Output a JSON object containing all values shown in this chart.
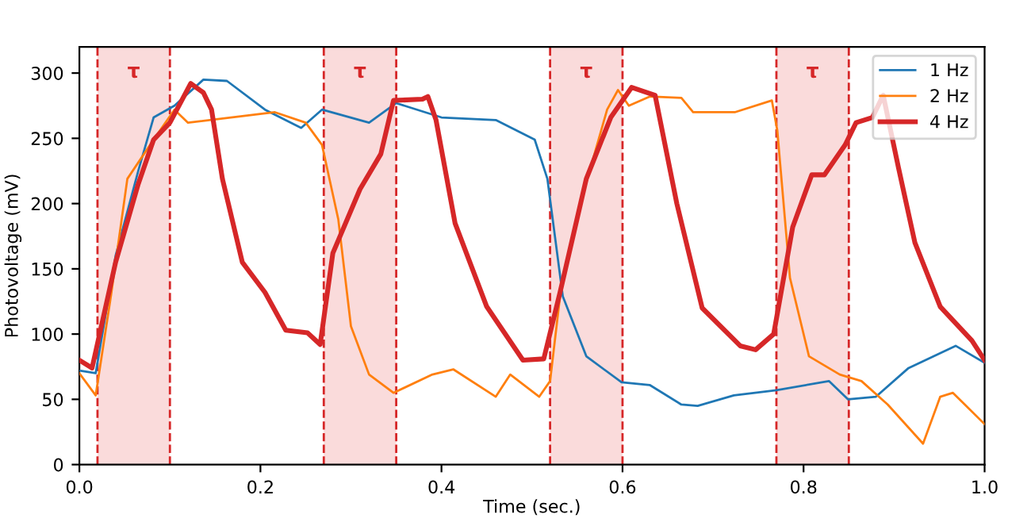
{
  "chart_data": {
    "type": "line",
    "xlabel": "Time (sec.)",
    "ylabel": "Photovoltage (mV)",
    "xlim": [
      0,
      1.0
    ],
    "ylim": [
      0,
      320
    ],
    "xticks": [
      {
        "value": 0,
        "label": "0.0"
      },
      0.2,
      0.4,
      0.6,
      0.8,
      {
        "value": 1.0,
        "label": "1.0"
      }
    ],
    "yticks": [
      0,
      50,
      100,
      150,
      200,
      250,
      300
    ],
    "grid": false,
    "legend": "top right",
    "marker": "none",
    "line_style": "solid",
    "series": [
      {
        "name": "1 Hz",
        "color": "#1f77b4",
        "x": [
          0,
          0.018,
          0.04,
          0.065,
          0.082,
          0.105,
          0.137,
          0.163,
          0.205,
          0.245,
          0.268,
          0.32,
          0.35,
          0.4,
          0.46,
          0.503,
          0.517,
          0.534,
          0.56,
          0.599,
          0.63,
          0.665,
          0.683,
          0.723,
          0.77,
          0.828,
          0.849,
          0.88,
          0.916,
          0.968,
          1.0
        ],
        "values": [
          72,
          70,
          160,
          225,
          266,
          275,
          295,
          294,
          272,
          258,
          272,
          262,
          277,
          266,
          264,
          249,
          219,
          129,
          83,
          63,
          61,
          46,
          45,
          53,
          57,
          64,
          50,
          52,
          74,
          91,
          78
        ]
      },
      {
        "name": "2 Hz",
        "color": "#ff7f0e",
        "x": [
          0,
          0.018,
          0.035,
          0.053,
          0.082,
          0.105,
          0.12,
          0.216,
          0.25,
          0.268,
          0.286,
          0.3,
          0.32,
          0.347,
          0.39,
          0.413,
          0.46,
          0.476,
          0.508,
          0.52,
          0.531,
          0.555,
          0.583,
          0.595,
          0.607,
          0.63,
          0.665,
          0.678,
          0.724,
          0.765,
          0.771,
          0.785,
          0.806,
          0.84,
          0.864,
          0.893,
          0.932,
          0.951,
          0.965,
          1.0
        ],
        "values": [
          70,
          53,
          130,
          219,
          249,
          272,
          262,
          270,
          262,
          245,
          188,
          106,
          69,
          55,
          69,
          73,
          52,
          69,
          52,
          64,
          129,
          204,
          272,
          287,
          275,
          282,
          281,
          270,
          270,
          279,
          256,
          143,
          83,
          69,
          64,
          46,
          16,
          52,
          55,
          31
        ]
      },
      {
        "name": "4 Hz",
        "color": "#d62728",
        "x": [
          0,
          0.014,
          0.04,
          0.065,
          0.082,
          0.1,
          0.123,
          0.137,
          0.146,
          0.158,
          0.18,
          0.205,
          0.228,
          0.252,
          0.266,
          0.28,
          0.31,
          0.333,
          0.347,
          0.379,
          0.385,
          0.394,
          0.415,
          0.45,
          0.49,
          0.513,
          0.531,
          0.56,
          0.587,
          0.61,
          0.636,
          0.66,
          0.688,
          0.73,
          0.747,
          0.767,
          0.788,
          0.809,
          0.823,
          0.846,
          0.858,
          0.876,
          0.888,
          0.905,
          0.923,
          0.951,
          0.986,
          1.0
        ],
        "values": [
          80,
          74,
          155,
          215,
          249,
          262,
          292,
          285,
          272,
          219,
          155,
          132,
          103,
          101,
          92,
          162,
          211,
          238,
          279,
          280,
          282,
          264,
          185,
          121,
          80,
          81,
          132,
          219,
          266,
          289,
          283,
          200,
          120,
          91,
          88,
          100,
          182,
          222,
          222,
          245,
          262,
          266,
          283,
          227,
          170,
          121,
          95,
          80
        ]
      }
    ],
    "bands": [
      {
        "axis": "x",
        "from": 0.02,
        "to": 0.1,
        "label": "τ",
        "color": "#fadbdb"
      },
      {
        "axis": "x",
        "from": 0.27,
        "to": 0.35,
        "label": "τ",
        "color": "#fadbdb"
      },
      {
        "axis": "x",
        "from": 0.52,
        "to": 0.6,
        "label": "τ",
        "color": "#fadbdb"
      },
      {
        "axis": "x",
        "from": 0.77,
        "to": 0.85,
        "label": "τ",
        "color": "#fadbdb"
      }
    ],
    "ref_lines": [
      {
        "axis": "x",
        "value": 0.02,
        "color": "#d62728",
        "line_style": "dashed"
      },
      {
        "axis": "x",
        "value": 0.1,
        "color": "#d62728",
        "line_style": "dashed"
      },
      {
        "axis": "x",
        "value": 0.27,
        "color": "#d62728",
        "line_style": "dashed"
      },
      {
        "axis": "x",
        "value": 0.35,
        "color": "#d62728",
        "line_style": "dashed"
      },
      {
        "axis": "x",
        "value": 0.52,
        "color": "#d62728",
        "line_style": "dashed"
      },
      {
        "axis": "x",
        "value": 0.6,
        "color": "#d62728",
        "line_style": "dashed"
      },
      {
        "axis": "x",
        "value": 0.77,
        "color": "#d62728",
        "line_style": "dashed"
      },
      {
        "axis": "x",
        "value": 0.85,
        "color": "#d62728",
        "line_style": "dashed"
      }
    ]
  }
}
